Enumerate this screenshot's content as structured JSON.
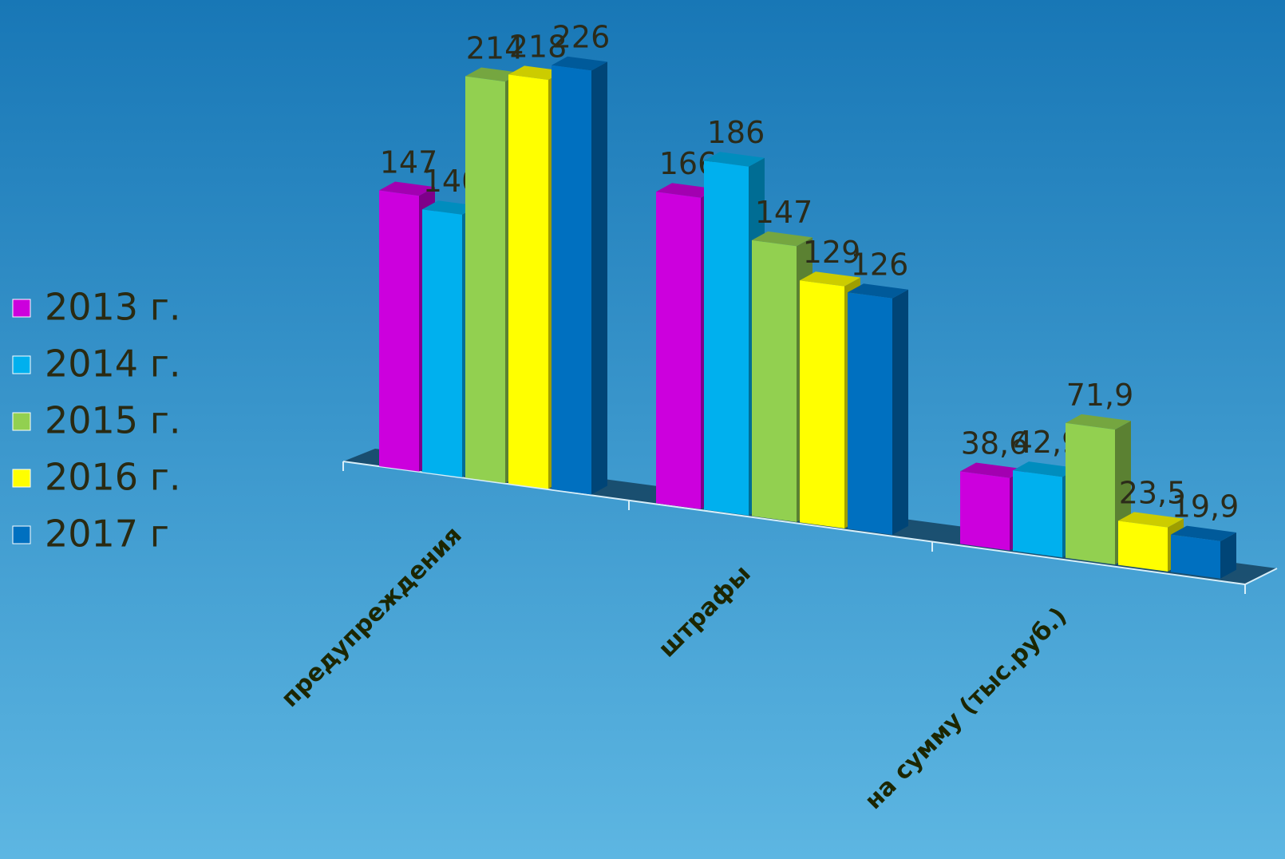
{
  "chart_data": {
    "type": "bar3d",
    "categories": [
      "предупреждения",
      "штрафы",
      "на сумму (тыс.руб.)"
    ],
    "series": [
      {
        "name": "2013 г.",
        "color": "#cc00dd",
        "values": [
          147,
          166,
          38.6
        ],
        "value_labels": [
          "147",
          "166",
          "38,6"
        ]
      },
      {
        "name": "2014 г.",
        "color": "#00b0ee",
        "values": [
          140,
          186,
          42.9
        ],
        "value_labels": [
          "140",
          "186",
          "42,9"
        ]
      },
      {
        "name": "2015 г.",
        "color": "#92d050",
        "values": [
          214,
          147,
          71.9
        ],
        "value_labels": [
          "214",
          "147",
          "71,9"
        ]
      },
      {
        "name": "2016 г.",
        "color": "#ffff00",
        "values": [
          218,
          129,
          23.5
        ],
        "value_labels": [
          "218",
          "129",
          "23,5"
        ]
      },
      {
        "name": "2017 г",
        "color": "#0070c0",
        "values": [
          226,
          126,
          19.9
        ],
        "value_labels": [
          "226",
          "126",
          "19,9"
        ]
      }
    ],
    "legend": "left"
  }
}
